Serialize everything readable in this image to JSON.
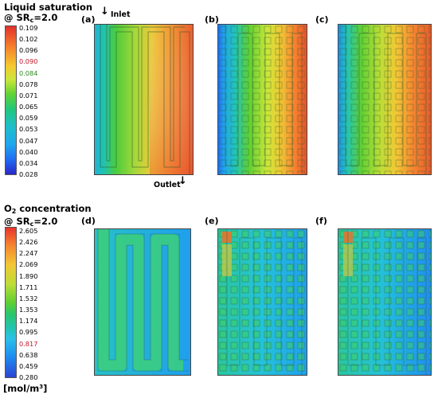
{
  "liquid": {
    "title_line1": "Liquid saturation",
    "title_prefix": "@ SR",
    "title_sub": "c",
    "title_suffix": "=2.0",
    "ticks": [
      "0.109",
      "0.102",
      "0.096",
      "0.090",
      "0.084",
      "0.078",
      "0.071",
      "0.065",
      "0.059",
      "0.053",
      "0.047",
      "0.040",
      "0.034",
      "0.028"
    ],
    "tick_colors": [
      "#000",
      "#000",
      "#000",
      "#c0182a",
      "#2e8b22",
      "#000",
      "#000",
      "#000",
      "#000",
      "#000",
      "#000",
      "#000",
      "#000",
      "#000"
    ]
  },
  "oxygen": {
    "title_o": "O",
    "title_o_sub": "2",
    "title_rest": " concentration",
    "title_prefix": "@ SR",
    "title_sub": "c",
    "title_suffix": "=2.0",
    "ticks": [
      "2.605",
      "2.426",
      "2.247",
      "2.069",
      "1.890",
      "1.711",
      "1.532",
      "1.353",
      "1.174",
      "0.995",
      "0.817",
      "0.638",
      "0.459",
      "0.280"
    ],
    "tick_colors": [
      "#000",
      "#000",
      "#000",
      "#000",
      "#000",
      "#000",
      "#000",
      "#000",
      "#000",
      "#000",
      "#c0182a",
      "#000",
      "#000",
      "#000"
    ],
    "unit_open": "[mol/m",
    "unit_sup": "3",
    "unit_close": "]"
  },
  "panels": {
    "a": "(a)",
    "b": "(b)",
    "c": "(c)",
    "d": "(d)",
    "e": "(e)",
    "f": "(f)"
  },
  "annotations": {
    "inlet": "Inlet",
    "outlet": "Outlet",
    "arrow": "↓"
  }
}
